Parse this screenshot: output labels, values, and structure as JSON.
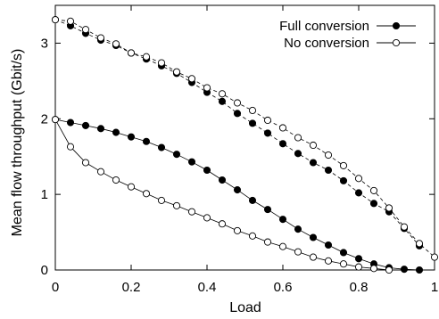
{
  "chart_data": {
    "type": "line",
    "title": "",
    "xlabel": "Load",
    "ylabel": "Mean flow throughput (Gbit/s)",
    "xlim": [
      0,
      1
    ],
    "ylim": [
      0,
      3.5
    ],
    "x_ticks": [
      "0",
      "0.2",
      "0.4",
      "0.6",
      "0.8",
      "1"
    ],
    "x_tick_values": [
      0,
      0.2,
      0.4,
      0.6,
      0.8,
      1
    ],
    "y_ticks": [
      "0",
      "1",
      "2",
      "3"
    ],
    "y_tick_values": [
      0,
      1,
      2,
      3
    ],
    "grid": false,
    "legend_position": "top-right",
    "legend": [
      {
        "name": "Full conversion",
        "marker": "filled-circle",
        "line": "solid"
      },
      {
        "name": "No conversion",
        "marker": "open-circle",
        "line": "solid"
      }
    ],
    "series": [
      {
        "name": "Full conversion",
        "group": "upper",
        "dashed": true,
        "marker": "filled",
        "x": [
          0,
          0.04,
          0.08,
          0.12,
          0.16,
          0.2,
          0.24,
          0.28,
          0.32,
          0.36,
          0.4,
          0.44,
          0.48,
          0.52,
          0.56,
          0.6,
          0.64,
          0.68,
          0.72,
          0.76,
          0.8,
          0.84,
          0.88,
          0.92,
          0.96
        ],
        "y": [
          3.31,
          3.23,
          3.13,
          3.04,
          2.97,
          2.87,
          2.79,
          2.7,
          2.6,
          2.48,
          2.35,
          2.23,
          2.07,
          1.94,
          1.81,
          1.67,
          1.54,
          1.42,
          1.32,
          1.18,
          1.02,
          0.88,
          0.77,
          0.55,
          0.32
        ]
      },
      {
        "name": "No conversion",
        "group": "upper",
        "dashed": true,
        "marker": "open",
        "x": [
          0,
          0.04,
          0.08,
          0.12,
          0.16,
          0.2,
          0.24,
          0.28,
          0.32,
          0.36,
          0.4,
          0.44,
          0.48,
          0.52,
          0.56,
          0.6,
          0.64,
          0.68,
          0.72,
          0.76,
          0.8,
          0.84,
          0.88,
          0.92,
          0.96,
          1.0
        ],
        "y": [
          3.31,
          3.29,
          3.18,
          3.07,
          2.99,
          2.87,
          2.82,
          2.74,
          2.62,
          2.53,
          2.41,
          2.33,
          2.21,
          2.11,
          1.98,
          1.88,
          1.75,
          1.65,
          1.52,
          1.38,
          1.21,
          1.05,
          0.82,
          0.57,
          0.35,
          0.17
        ]
      },
      {
        "name": "Full conversion",
        "group": "lower",
        "dashed": false,
        "marker": "filled",
        "x": [
          0,
          0.04,
          0.08,
          0.12,
          0.16,
          0.2,
          0.24,
          0.28,
          0.32,
          0.36,
          0.4,
          0.44,
          0.48,
          0.52,
          0.56,
          0.6,
          0.64,
          0.68,
          0.72,
          0.76,
          0.8,
          0.84,
          0.88,
          0.92,
          0.96
        ],
        "y": [
          1.99,
          1.95,
          1.91,
          1.87,
          1.82,
          1.76,
          1.7,
          1.62,
          1.53,
          1.43,
          1.32,
          1.19,
          1.06,
          0.92,
          0.8,
          0.67,
          0.54,
          0.43,
          0.33,
          0.23,
          0.15,
          0.08,
          0.03,
          0.01,
          0.0
        ]
      },
      {
        "name": "No conversion",
        "group": "lower",
        "dashed": false,
        "marker": "open",
        "x": [
          0,
          0.04,
          0.08,
          0.12,
          0.16,
          0.2,
          0.24,
          0.28,
          0.32,
          0.36,
          0.4,
          0.44,
          0.48,
          0.52,
          0.56,
          0.6,
          0.64,
          0.68,
          0.72,
          0.76,
          0.8,
          0.84,
          0.88
        ],
        "y": [
          1.99,
          1.63,
          1.42,
          1.3,
          1.19,
          1.1,
          1.01,
          0.92,
          0.85,
          0.77,
          0.69,
          0.61,
          0.52,
          0.45,
          0.37,
          0.31,
          0.24,
          0.17,
          0.12,
          0.08,
          0.04,
          0.02,
          0.0
        ]
      }
    ]
  }
}
